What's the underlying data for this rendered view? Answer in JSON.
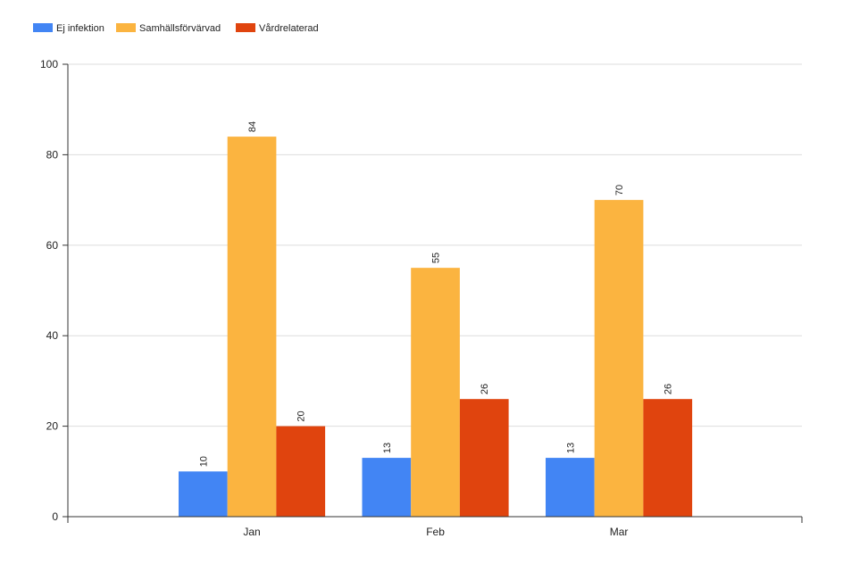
{
  "chart_data": {
    "type": "bar",
    "categories": [
      "Jan",
      "Feb",
      "Mar"
    ],
    "series": [
      {
        "name": "Ej infektion",
        "values": [
          10,
          13,
          13
        ],
        "color": "#4285F4"
      },
      {
        "name": "Samhällsförvärvad",
        "values": [
          84,
          55,
          70
        ],
        "color": "#FBB440"
      },
      {
        "name": "Vårdrelaterad",
        "values": [
          20,
          26,
          26
        ],
        "color": "#E0440E"
      }
    ],
    "ylim": [
      0,
      100
    ],
    "yticks": [
      0,
      20,
      40,
      60,
      80,
      100
    ],
    "grid": true,
    "legend_position": "top-left",
    "data_labels": true,
    "axis_color": "#333333",
    "grid_color": "#dddddd"
  }
}
